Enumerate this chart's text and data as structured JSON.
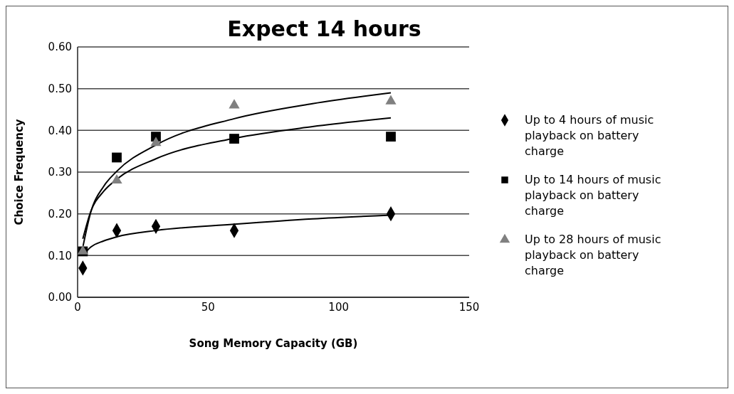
{
  "chart_data": {
    "type": "scatter",
    "title": "Expect 14 hours",
    "xlabel": "Song Memory Capacity  (GB)",
    "ylabel": "Choice Frequency",
    "xlim": [
      0,
      150
    ],
    "xticks": [
      0,
      50,
      100,
      150
    ],
    "ylim": [
      0,
      0.6
    ],
    "yticks": [
      {
        "value": 0,
        "label": "0.00"
      },
      {
        "value": 0.1,
        "label": "0.10"
      },
      {
        "value": 0.2,
        "label": "0.20"
      },
      {
        "value": 0.3,
        "label": "0.30"
      },
      {
        "value": 0.4,
        "label": "0.40"
      },
      {
        "value": 0.5,
        "label": "0.50"
      },
      {
        "value": 0.6,
        "label": "0.60"
      }
    ],
    "grid": "y",
    "legend": "right",
    "series": [
      {
        "name": "Up to 4 hours of music playback on battery charge",
        "color": "#000000",
        "marker": "diamond",
        "x": [
          2,
          15,
          30,
          60,
          120
        ],
        "values": [
          0.07,
          0.16,
          0.17,
          0.16,
          0.2
        ]
      },
      {
        "name": "Up to 14 hours of music playback on battery charge",
        "color": "#000000",
        "marker": "square",
        "x": [
          2,
          15,
          30,
          60,
          120
        ],
        "values": [
          0.11,
          0.335,
          0.385,
          0.38,
          0.385
        ]
      },
      {
        "name": "Up to 28 hours of music playback on battery charge",
        "color": "#808080",
        "marker": "triangle",
        "x": [
          2,
          15,
          30,
          60,
          120
        ],
        "values": [
          0.11,
          0.28,
          0.37,
          0.46,
          0.47
        ]
      },
      {
        "type": "line",
        "color": "#000000",
        "marker": "none",
        "x": [
          2,
          5,
          10,
          15,
          30,
          60,
          90,
          120
        ],
        "values": [
          0.1,
          0.12,
          0.135,
          0.145,
          0.16,
          0.175,
          0.188,
          0.197
        ]
      },
      {
        "type": "line",
        "color": "#000000",
        "marker": "none",
        "x": [
          2,
          5,
          10,
          15,
          30,
          60,
          90,
          120
        ],
        "values": [
          0.14,
          0.205,
          0.254,
          0.283,
          0.332,
          0.381,
          0.409,
          0.43
        ]
      },
      {
        "type": "line",
        "color": "#000000",
        "marker": "none",
        "x": [
          2,
          5,
          10,
          15,
          30,
          60,
          90,
          120
        ],
        "values": [
          0.12,
          0.203,
          0.266,
          0.302,
          0.365,
          0.428,
          0.464,
          0.49
        ]
      }
    ]
  }
}
